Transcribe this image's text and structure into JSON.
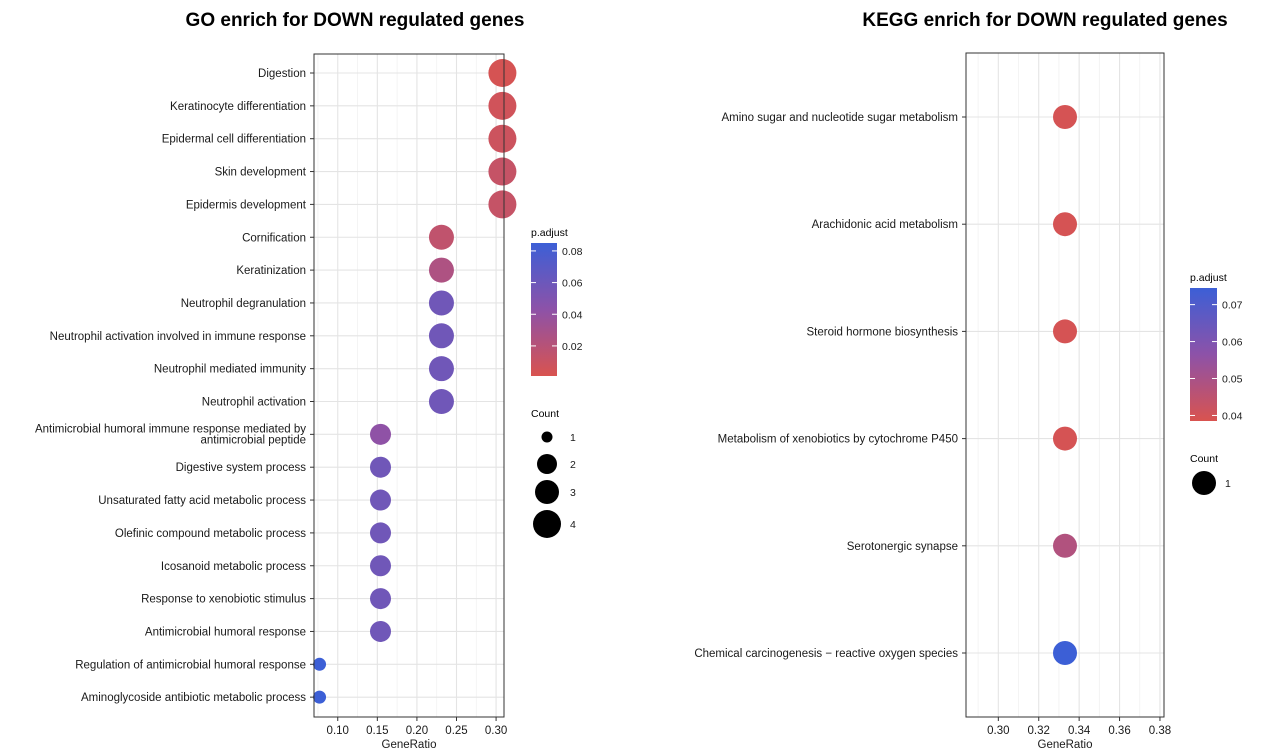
{
  "chart_data": [
    {
      "type": "scatter",
      "title": "GO enrich for DOWN regulated genes",
      "xlabel": "GeneRatio",
      "ylabel": "",
      "xlim": [
        0.07,
        0.31
      ],
      "xticks": [
        0.1,
        0.15,
        0.2,
        0.25,
        0.3
      ],
      "xtick_labels": [
        "0.10",
        "0.15",
        "0.20",
        "0.25",
        "0.30"
      ],
      "grid": true,
      "legend_position": "right",
      "color_var": "p.adjust",
      "color_low": "#d9534f",
      "color_high": "#3c5fd6",
      "color_range": [
        0.001,
        0.085
      ],
      "color_ticks": [
        0.02,
        0.04,
        0.06,
        0.08
      ],
      "color_tick_labels": [
        "0.02",
        "0.04",
        "0.06",
        "0.08"
      ],
      "size_var": "Count",
      "size_legend": [
        1,
        2,
        3,
        4
      ],
      "size_legend_labels": [
        "1",
        "2",
        "3",
        "4"
      ],
      "points": [
        {
          "term": "Digestion",
          "x": 0.308,
          "count": 4,
          "p_adjust": 0.003
        },
        {
          "term": "Keratinocyte differentiation",
          "x": 0.308,
          "count": 4,
          "p_adjust": 0.006
        },
        {
          "term": "Epidermal cell differentiation",
          "x": 0.308,
          "count": 4,
          "p_adjust": 0.008
        },
        {
          "term": "Skin development",
          "x": 0.308,
          "count": 4,
          "p_adjust": 0.012
        },
        {
          "term": "Epidermis development",
          "x": 0.308,
          "count": 4,
          "p_adjust": 0.012
        },
        {
          "term": "Cornification",
          "x": 0.231,
          "count": 3,
          "p_adjust": 0.015
        },
        {
          "term": "Keratinization",
          "x": 0.231,
          "count": 3,
          "p_adjust": 0.025
        },
        {
          "term": "Neutrophil degranulation",
          "x": 0.231,
          "count": 3,
          "p_adjust": 0.058
        },
        {
          "term": "Neutrophil activation involved in immune response",
          "x": 0.231,
          "count": 3,
          "p_adjust": 0.058
        },
        {
          "term": "Neutrophil mediated immunity",
          "x": 0.231,
          "count": 3,
          "p_adjust": 0.058
        },
        {
          "term": "Neutrophil activation",
          "x": 0.231,
          "count": 3,
          "p_adjust": 0.058
        },
        {
          "term": "Antimicrobial humoral immune response mediated by antimicrobial peptide",
          "term_lines": [
            "Antimicrobial humoral immune response mediated by",
            "antimicrobial peptide"
          ],
          "x": 0.154,
          "count": 2,
          "p_adjust": 0.042
        },
        {
          "term": "Digestive system process",
          "x": 0.154,
          "count": 2,
          "p_adjust": 0.058
        },
        {
          "term": "Unsaturated fatty acid metabolic process",
          "x": 0.154,
          "count": 2,
          "p_adjust": 0.058
        },
        {
          "term": "Olefinic compound metabolic process",
          "x": 0.154,
          "count": 2,
          "p_adjust": 0.058
        },
        {
          "term": "Icosanoid metabolic process",
          "x": 0.154,
          "count": 2,
          "p_adjust": 0.058
        },
        {
          "term": "Response to xenobiotic stimulus",
          "x": 0.154,
          "count": 2,
          "p_adjust": 0.058
        },
        {
          "term": "Antimicrobial humoral response",
          "x": 0.154,
          "count": 2,
          "p_adjust": 0.058
        },
        {
          "term": "Regulation of antimicrobial humoral response",
          "x": 0.077,
          "count": 1,
          "p_adjust": 0.085
        },
        {
          "term": "Aminoglycoside antibiotic metabolic process",
          "x": 0.077,
          "count": 1,
          "p_adjust": 0.085
        }
      ]
    },
    {
      "type": "scatter",
      "title": "KEGG enrich for DOWN regulated genes",
      "xlabel": "GeneRatio",
      "ylabel": "",
      "xlim": [
        0.284,
        0.382
      ],
      "xticks": [
        0.3,
        0.32,
        0.34,
        0.36,
        0.38
      ],
      "xtick_labels": [
        "0.30",
        "0.32",
        "0.34",
        "0.36",
        "0.38"
      ],
      "grid": true,
      "legend_position": "right",
      "color_var": "p.adjust",
      "color_low": "#d9534f",
      "color_high": "#3c5fd6",
      "color_range": [
        0.0385,
        0.0745
      ],
      "color_ticks": [
        0.04,
        0.05,
        0.06,
        0.07
      ],
      "color_tick_labels": [
        "0.04",
        "0.05",
        "0.06",
        "0.07"
      ],
      "size_var": "Count",
      "size_legend": [
        1
      ],
      "size_legend_labels": [
        "1"
      ],
      "points": [
        {
          "term": "Amino sugar and nucleotide sugar metabolism",
          "x": 0.333,
          "count": 1,
          "p_adjust": 0.0395
        },
        {
          "term": "Arachidonic acid metabolism",
          "x": 0.333,
          "count": 1,
          "p_adjust": 0.0395
        },
        {
          "term": "Steroid hormone biosynthesis",
          "x": 0.333,
          "count": 1,
          "p_adjust": 0.0395
        },
        {
          "term": "Metabolism of xenobiotics by cytochrome P450",
          "x": 0.333,
          "count": 1,
          "p_adjust": 0.0395
        },
        {
          "term": "Serotonergic synapse",
          "x": 0.333,
          "count": 1,
          "p_adjust": 0.048
        },
        {
          "term": "Chemical carcinogenesis − reactive oxygen species",
          "x": 0.333,
          "count": 1,
          "p_adjust": 0.0745
        }
      ]
    }
  ]
}
